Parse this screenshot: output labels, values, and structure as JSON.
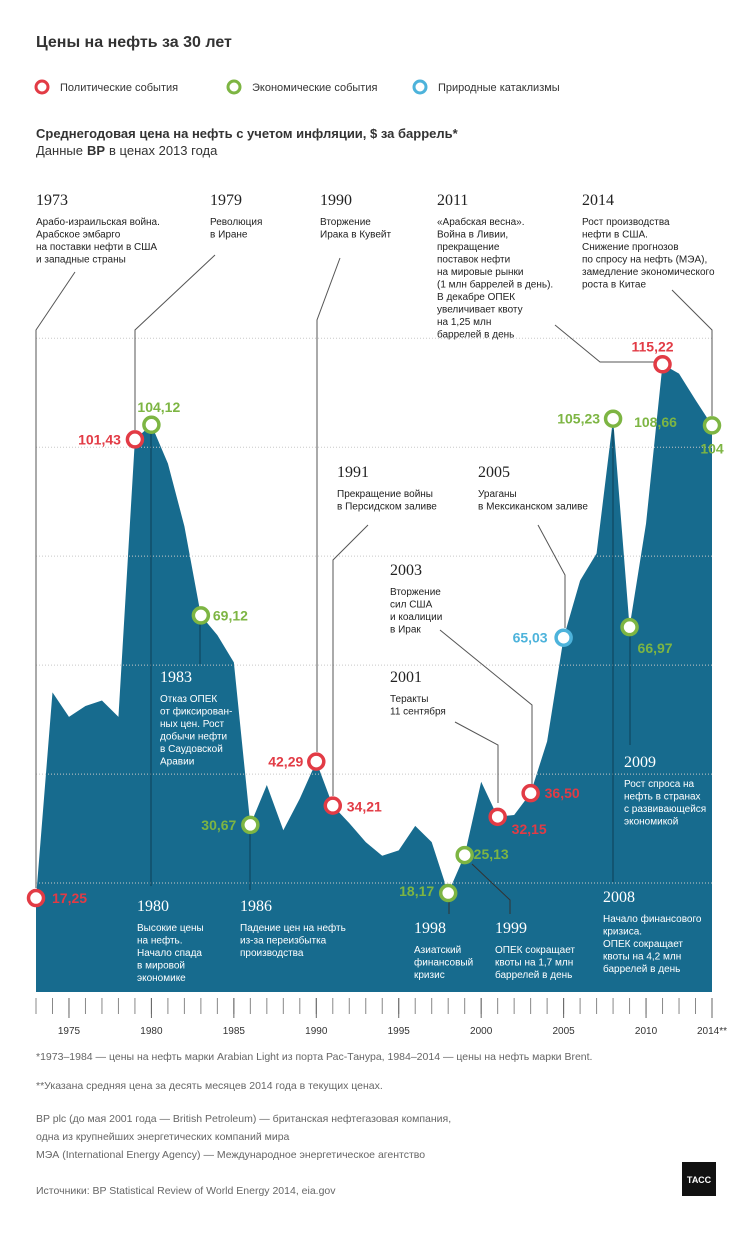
{
  "chart_data": {
    "type": "area",
    "title": "Цены на нефть за 30 лет",
    "legend": [
      {
        "name": "Политические события",
        "color": "#e23b45"
      },
      {
        "name": "Экономические события",
        "color": "#7db543"
      },
      {
        "name": "Природные катаклизмы",
        "color": "#4db3db"
      }
    ],
    "subtitle": "Среднегодовая цена на нефть с учетом инфляции, $ за баррель*",
    "subtitle_parts": [
      "Данные",
      "BP",
      "в ценах 2013 года"
    ],
    "x": [
      1973,
      1974,
      1975,
      1976,
      1977,
      1978,
      1979,
      1980,
      1981,
      1982,
      1983,
      1984,
      1985,
      1986,
      1987,
      1988,
      1989,
      1990,
      1991,
      1992,
      1993,
      1994,
      1995,
      1996,
      1997,
      1998,
      1999,
      2000,
      2001,
      2002,
      2003,
      2004,
      2005,
      2006,
      2007,
      2008,
      2009,
      2010,
      2011,
      2012,
      2013,
      2014
    ],
    "values": [
      17.25,
      55,
      50.5,
      52.5,
      53.5,
      50.5,
      101.43,
      104.12,
      97,
      85.5,
      69.12,
      65.5,
      60.5,
      30.67,
      38,
      29.7,
      35.5,
      42.29,
      34.21,
      31,
      27.5,
      25,
      26,
      30.5,
      27.5,
      18.17,
      25.13,
      38.6,
      32.15,
      32.5,
      36.5,
      46,
      65.03,
      75.5,
      80.5,
      105.23,
      66.97,
      86,
      115.22,
      113.5,
      108.66,
      104
    ],
    "value_labels": [
      "17,25",
      null,
      null,
      null,
      null,
      null,
      "101,43",
      "104,12",
      null,
      null,
      "69,12",
      null,
      null,
      "30,67",
      null,
      null,
      null,
      "42,29",
      "34,21",
      null,
      null,
      null,
      null,
      null,
      null,
      "18,17",
      "25,13",
      null,
      "32,15",
      null,
      "36,50",
      null,
      "65,03",
      null,
      null,
      "105,23",
      "66,97",
      null,
      "115,22",
      null,
      "108,66",
      "104"
    ],
    "value_label_colors": [
      "#e23b45",
      null,
      null,
      null,
      null,
      null,
      "#e23b45",
      "#7db543",
      null,
      null,
      "#7db543",
      null,
      null,
      "#7db543",
      null,
      null,
      null,
      "#e23b45",
      "#e23b45",
      null,
      null,
      null,
      null,
      null,
      null,
      "#7db543",
      "#7db543",
      null,
      "#e23b45",
      null,
      "#e23b45",
      null,
      "#4db3db",
      null,
      null,
      "#7db543",
      "#7db543",
      null,
      "#e23b45",
      null,
      "#7db543",
      "#7db543"
    ],
    "markers": [
      "#e23b45",
      null,
      null,
      null,
      null,
      null,
      "#e23b45",
      "#7db543",
      null,
      null,
      "#7db543",
      null,
      null,
      "#7db543",
      null,
      null,
      null,
      "#e23b45",
      "#e23b45",
      null,
      null,
      null,
      null,
      null,
      null,
      "#7db543",
      "#7db543",
      null,
      "#e23b45",
      null,
      "#e23b45",
      null,
      "#4db3db",
      null,
      null,
      "#7db543",
      "#7db543",
      null,
      "#e23b45",
      null,
      null,
      "#7db543"
    ],
    "color": "#176b8e",
    "xlim": [
      1973,
      2014
    ],
    "xticks": [
      1975,
      1980,
      1985,
      1990,
      1995,
      2000,
      2005,
      2010,
      {
        "value": 2014,
        "label": "2014**"
      }
    ],
    "ylim": [
      0,
      125
    ],
    "yticks": [
      20,
      40,
      60,
      80,
      100,
      120
    ],
    "grid": true,
    "annotations": [
      {
        "year": "1973",
        "lines": [
          "Арабо-израильская война.",
          "Арабское эмбарго",
          "на поставки нефти в США",
          "и западные страны"
        ]
      },
      {
        "year": "1979",
        "lines": [
          "Революция",
          "в Иране"
        ]
      },
      {
        "year": "1990",
        "lines": [
          "Вторжение",
          "Ирака в Кувейт"
        ]
      },
      {
        "year": "2011",
        "lines": [
          "«Арабская весна».",
          "Война в Ливии,",
          "прекращение",
          "поставок нефти",
          "на мировые рынки",
          "(1 млн баррелей в день).",
          "В декабре ОПЕК",
          "увеличивает квоту",
          "на 1,25 млн",
          "баррелей в день"
        ]
      },
      {
        "year": "2014",
        "lines": [
          "Рост производства",
          "нефти в США.",
          "Снижение прогнозов",
          "по спросу на нефть (МЭА),",
          "замедление экономического",
          "роста в Китае"
        ]
      },
      {
        "year": "1991",
        "lines": [
          "Прекращение войны",
          "в Персидском заливе"
        ]
      },
      {
        "year": "2005",
        "lines": [
          "Ураганы",
          "в Мексиканском заливе"
        ]
      },
      {
        "year": "2003",
        "lines": [
          "Вторжение",
          "сил США",
          "и коалиции",
          "в Ирак"
        ]
      },
      {
        "year": "2001",
        "lines": [
          "Теракты",
          "11 сентября"
        ]
      },
      {
        "year": "1983",
        "lines": [
          "Отказ ОПЕК",
          "от фиксирован-",
          "ных цен. Рост",
          "добычи нефти",
          "в Саудовской",
          "Аравии"
        ]
      },
      {
        "year": "2009",
        "lines": [
          "Рост спроса на",
          "нефть в странах",
          "с развивающейся",
          "экономикой"
        ]
      },
      {
        "year": "1980",
        "lines": [
          "Высокие цены",
          "на нефть.",
          "Начало спада",
          "в мировой",
          "экономике"
        ]
      },
      {
        "year": "1986",
        "lines": [
          "Падение цен на нефть",
          "из-за переизбытка",
          "производства"
        ]
      },
      {
        "year": "1998",
        "lines": [
          "Азиатский",
          "финансовый",
          "кризис"
        ]
      },
      {
        "year": "1999",
        "lines": [
          "ОПЕК сокращает",
          "квоты на 1,7 млн",
          "баррелей в день"
        ]
      },
      {
        "year": "2008",
        "lines": [
          "Начало финансового",
          "кризиса.",
          "ОПЕК сокращает",
          "квоты на 4,2 млн",
          "баррелей в день"
        ]
      }
    ],
    "footnotes": [
      "*1973–1984 — цены на нефть марки Arabian Light из порта Рас-Танура, 1984–2014 — цены на нефть марки Brent.",
      "**Указана средняя цена за десять месяцев 2014 года в текущих ценах.",
      "BP plc (до мая 2001 года — British Petroleum) — британская нефтегазовая компания,",
      "одна из крупнейших энергетических компаний мира",
      "МЭА (International Energy Agency) — Международное энергетическое агентство",
      "Источники: BP Statistical Review of World Energy 2014, eia.gov"
    ],
    "logo": "ТАСС"
  }
}
